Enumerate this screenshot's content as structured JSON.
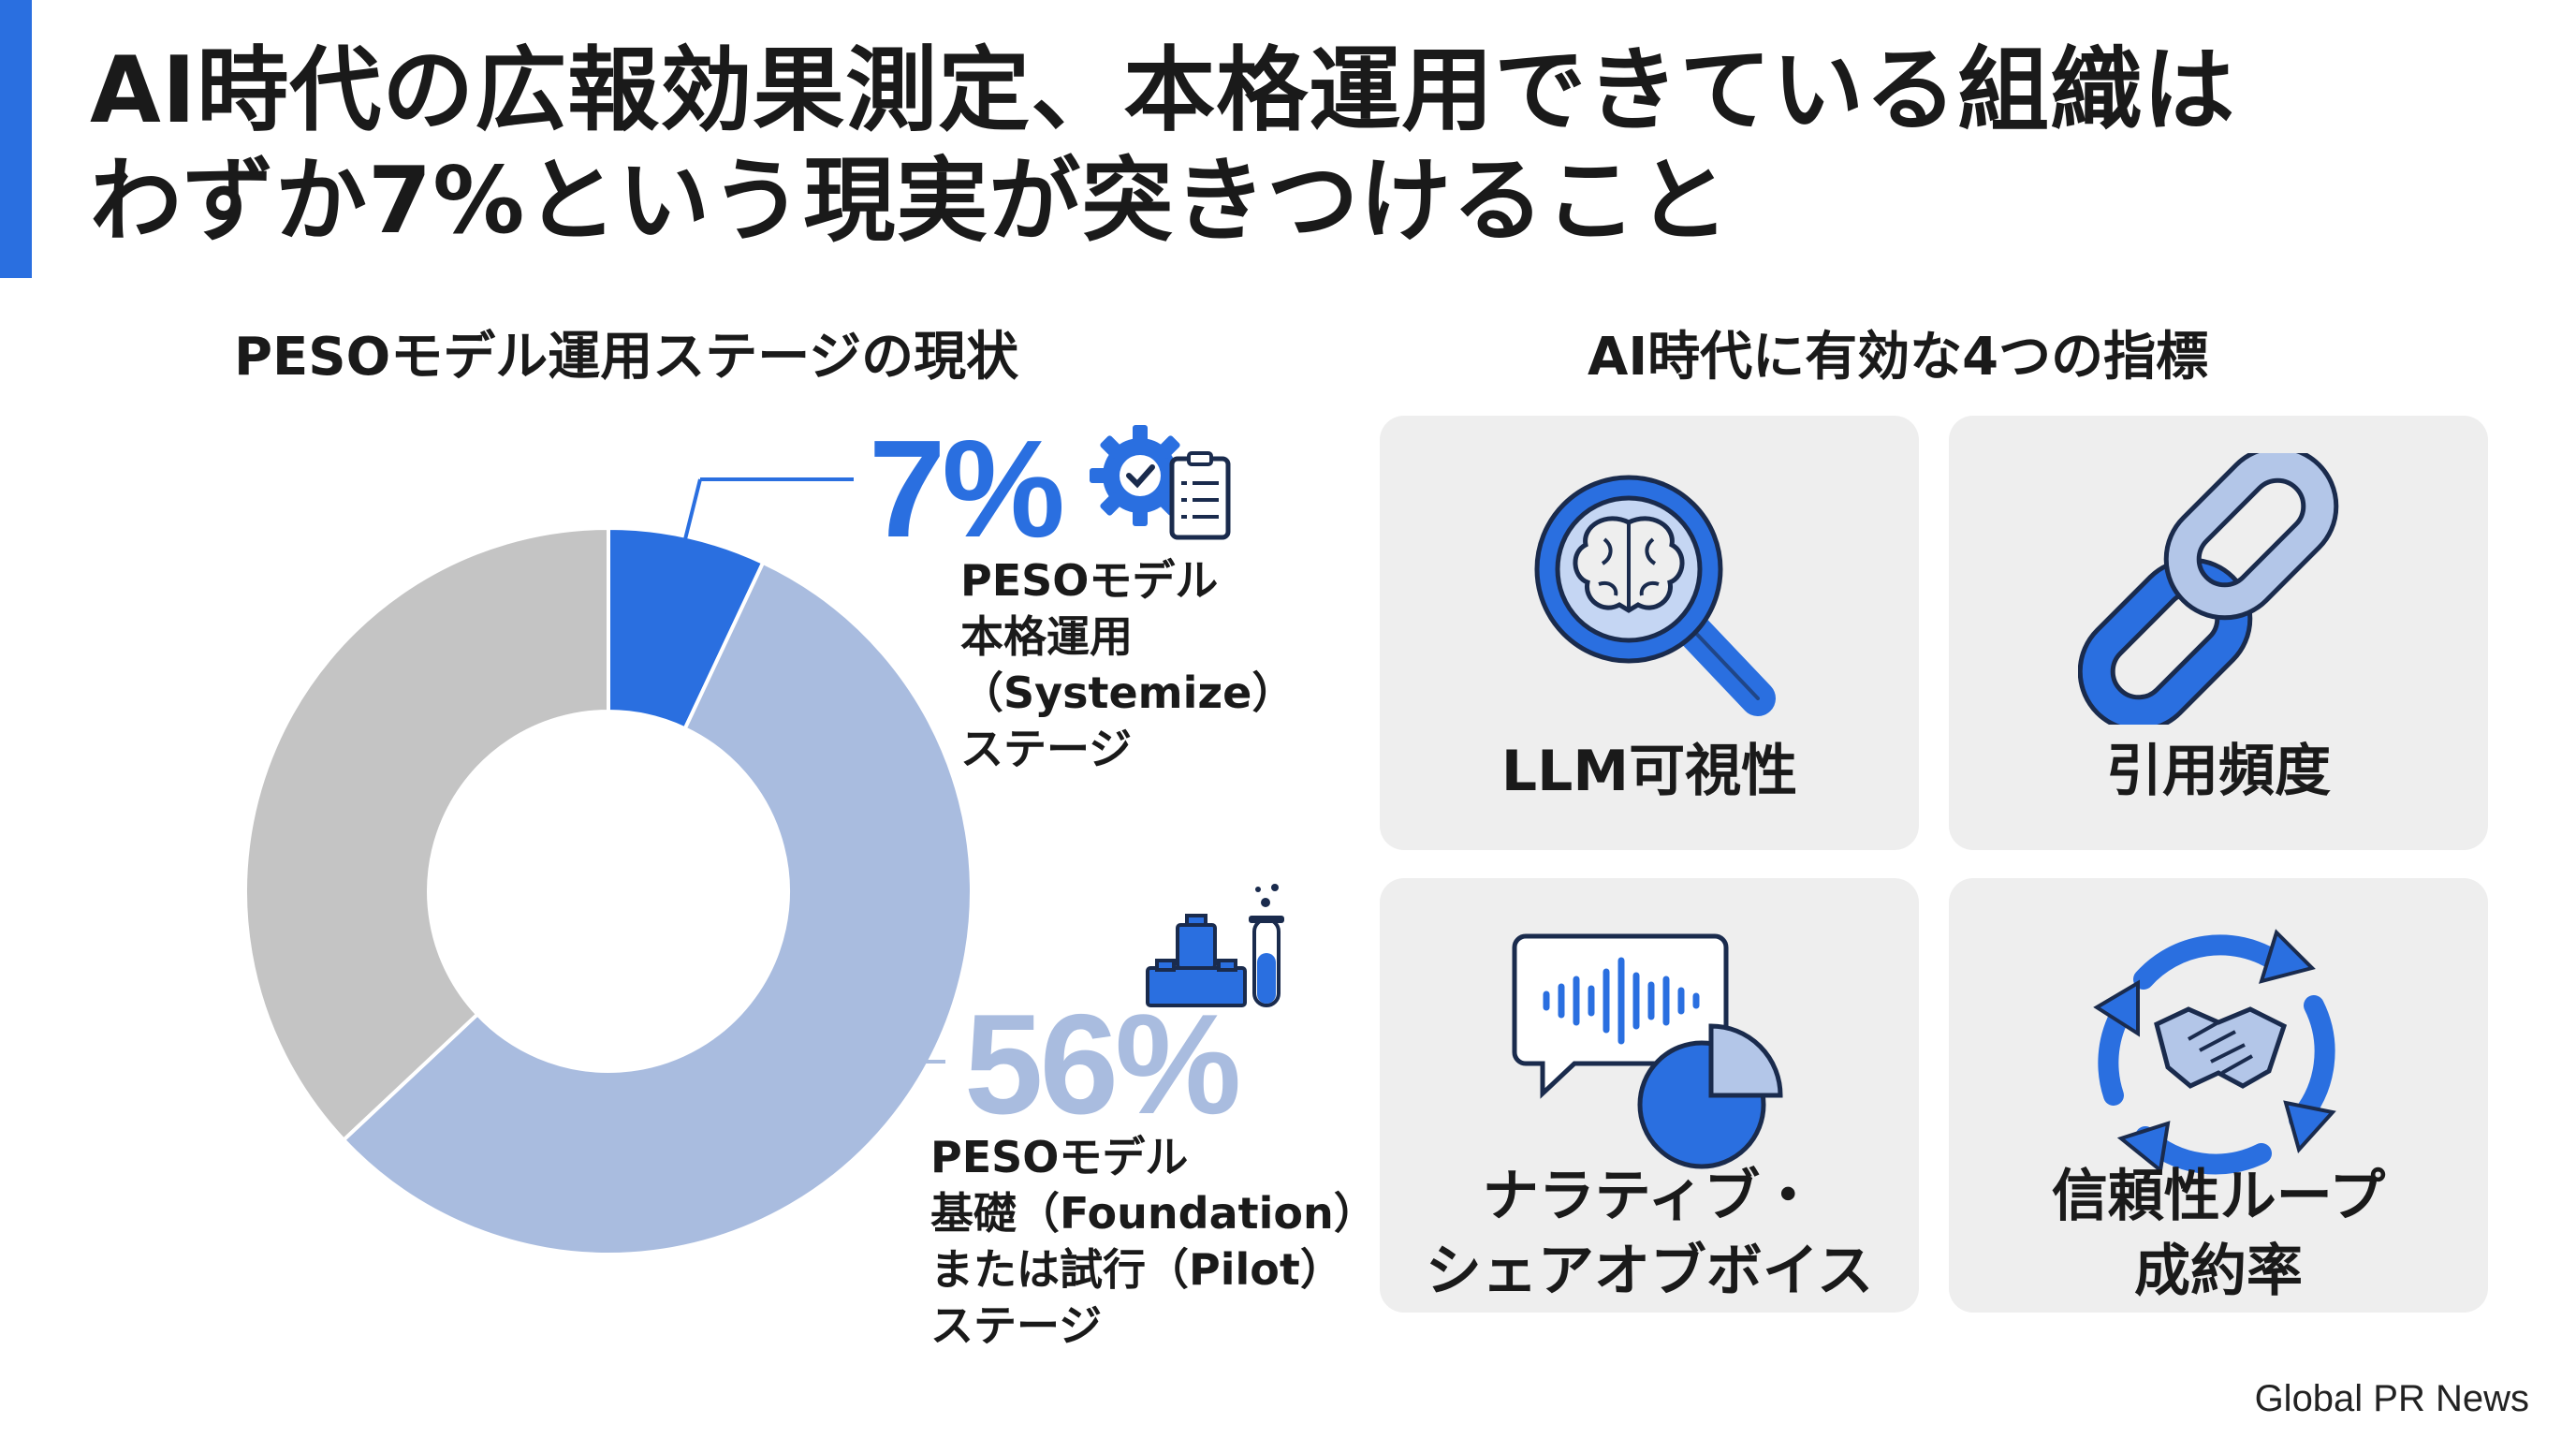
{
  "title": {
    "line1": "AI時代の広報効果測定、本格運用できている組織は",
    "line2": "わずか7%という現実が突きつけること"
  },
  "colors": {
    "accent": "#2a6fe0",
    "light_blue": "#a9bcdf",
    "gray": "#c4c4c4",
    "card_bg": "#eeeeee"
  },
  "left_section": {
    "title": "PESOモデル運用ステージの現状"
  },
  "right_section": {
    "title": "AI時代に有効な4つの指標"
  },
  "chart_data": {
    "type": "pie",
    "slices": [
      {
        "value": 7,
        "label": "7%",
        "color": "#2a6fe0"
      },
      {
        "value": 56,
        "label": "56%",
        "color": "#a9bcdf"
      },
      {
        "value": 37,
        "color": "#c4c4c4"
      }
    ],
    "annotations": [
      {
        "value": "7%",
        "text": [
          "PESOモデル",
          "本格運用",
          "（Systemize）",
          "ステージ"
        ],
        "icon": "gear-clipboard-icon"
      },
      {
        "value": "56%",
        "text": [
          "PESOモデル",
          "基礎（Foundation）",
          "または試行（Pilot）",
          "ステージ"
        ],
        "icon": "blocks-test-tube-icon"
      }
    ]
  },
  "metrics": [
    {
      "label": [
        "LLM可視性"
      ],
      "icon": "brain-magnifier-icon"
    },
    {
      "label": [
        "引用頻度"
      ],
      "icon": "chain-link-icon"
    },
    {
      "label": [
        "ナラティブ・",
        "シェアオブボイス"
      ],
      "icon": "speech-waveform-pie-icon"
    },
    {
      "label": [
        "信頼性ループ",
        "成約率"
      ],
      "icon": "handshake-cycle-icon"
    }
  ],
  "footer": {
    "source": "Global PR News"
  }
}
